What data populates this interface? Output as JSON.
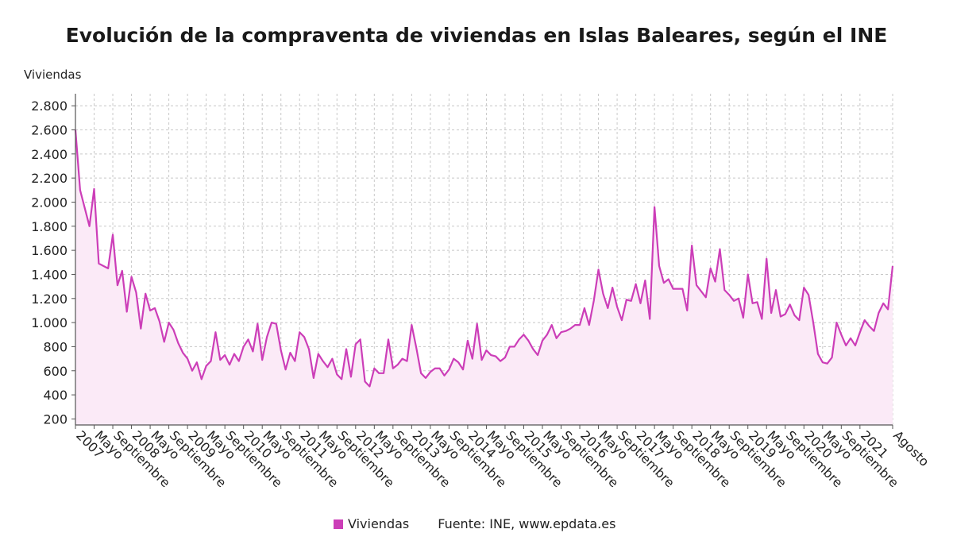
{
  "title": "Evolución de la compraventa de viviendas en Islas Baleares, según el INE",
  "legend_label": "Viviendas",
  "source": "Fuente: INE, www.epdata.es",
  "colors": {
    "line": "#cc3eb8",
    "fill": "#fbeaf7",
    "grid": "#c8c8c8",
    "axis": "#555555"
  },
  "chart_data": {
    "type": "area",
    "ylabel": "Viviendas",
    "ylim": [
      150,
      2900
    ],
    "yticks": [
      200,
      400,
      600,
      800,
      1000,
      1200,
      1400,
      1600,
      1800,
      2000,
      2200,
      2400,
      2600,
      2800
    ],
    "ytick_labels": [
      "200",
      "400",
      "600",
      "800",
      "1.000",
      "1.200",
      "1.400",
      "1.600",
      "1.800",
      "2.000",
      "2.200",
      "2.400",
      "2.600",
      "2.800"
    ],
    "x_tick_labels": [
      {
        "i": 0,
        "label": "2007"
      },
      {
        "i": 4,
        "label": "Mayo"
      },
      {
        "i": 8,
        "label": "Septiembre"
      },
      {
        "i": 12,
        "label": "2008"
      },
      {
        "i": 16,
        "label": "Mayo"
      },
      {
        "i": 20,
        "label": "Septiembre"
      },
      {
        "i": 24,
        "label": "2009"
      },
      {
        "i": 28,
        "label": "Mayo"
      },
      {
        "i": 32,
        "label": "Septiembre"
      },
      {
        "i": 36,
        "label": "2010"
      },
      {
        "i": 40,
        "label": "Mayo"
      },
      {
        "i": 44,
        "label": "Septiembre"
      },
      {
        "i": 48,
        "label": "2011"
      },
      {
        "i": 52,
        "label": "Mayo"
      },
      {
        "i": 56,
        "label": "Septiembre"
      },
      {
        "i": 60,
        "label": "2012"
      },
      {
        "i": 64,
        "label": "Mayo"
      },
      {
        "i": 68,
        "label": "Septiembre"
      },
      {
        "i": 72,
        "label": "2013"
      },
      {
        "i": 76,
        "label": "Mayo"
      },
      {
        "i": 80,
        "label": "Septiembre"
      },
      {
        "i": 84,
        "label": "2014"
      },
      {
        "i": 88,
        "label": "Mayo"
      },
      {
        "i": 92,
        "label": "Septiembre"
      },
      {
        "i": 96,
        "label": "2015"
      },
      {
        "i": 100,
        "label": "Mayo"
      },
      {
        "i": 104,
        "label": "Septiembre"
      },
      {
        "i": 108,
        "label": "2016"
      },
      {
        "i": 112,
        "label": "Mayo"
      },
      {
        "i": 116,
        "label": "Septiembre"
      },
      {
        "i": 120,
        "label": "2017"
      },
      {
        "i": 124,
        "label": "Mayo"
      },
      {
        "i": 128,
        "label": "Septiembre"
      },
      {
        "i": 132,
        "label": "2018"
      },
      {
        "i": 136,
        "label": "Mayo"
      },
      {
        "i": 140,
        "label": "Septiembre"
      },
      {
        "i": 144,
        "label": "2019"
      },
      {
        "i": 148,
        "label": "Mayo"
      },
      {
        "i": 152,
        "label": "Septiembre"
      },
      {
        "i": 156,
        "label": "2020"
      },
      {
        "i": 160,
        "label": "Mayo"
      },
      {
        "i": 164,
        "label": "Septiembre"
      },
      {
        "i": 168,
        "label": "2021"
      },
      {
        "i": 175,
        "label": "Agosto"
      }
    ],
    "series": [
      {
        "name": "Viviendas",
        "start": "2007-01",
        "values": [
          2600,
          2100,
          1950,
          1800,
          2110,
          1490,
          1470,
          1450,
          1730,
          1310,
          1430,
          1090,
          1380,
          1250,
          950,
          1240,
          1100,
          1120,
          1010,
          840,
          1000,
          940,
          830,
          750,
          700,
          600,
          670,
          530,
          640,
          680,
          920,
          690,
          730,
          650,
          740,
          680,
          800,
          860,
          760,
          990,
          690,
          880,
          1000,
          990,
          770,
          610,
          750,
          680,
          920,
          880,
          780,
          540,
          740,
          680,
          630,
          700,
          570,
          530,
          780,
          550,
          820,
          860,
          510,
          470,
          620,
          580,
          580,
          860,
          620,
          650,
          700,
          680,
          980,
          790,
          580,
          540,
          590,
          620,
          620,
          560,
          610,
          700,
          670,
          610,
          850,
          700,
          990,
          690,
          770,
          730,
          720,
          680,
          710,
          800,
          800,
          860,
          900,
          850,
          780,
          730,
          850,
          900,
          980,
          870,
          920,
          930,
          950,
          980,
          980,
          1120,
          980,
          1180,
          1440,
          1240,
          1120,
          1290,
          1130,
          1020,
          1190,
          1180,
          1320,
          1160,
          1350,
          1030,
          1960,
          1470,
          1330,
          1360,
          1280,
          1280,
          1280,
          1100,
          1640,
          1310,
          1260,
          1210,
          1450,
          1340,
          1610,
          1270,
          1230,
          1180,
          1200,
          1040,
          1400,
          1160,
          1170,
          1030,
          1530,
          1080,
          1270,
          1050,
          1070,
          1150,
          1060,
          1020,
          1290,
          1230,
          1000,
          740,
          670,
          660,
          710,
          1000,
          900,
          810,
          870,
          810,
          920,
          1020,
          970,
          930,
          1080,
          1160,
          1110,
          1470
        ]
      }
    ]
  }
}
